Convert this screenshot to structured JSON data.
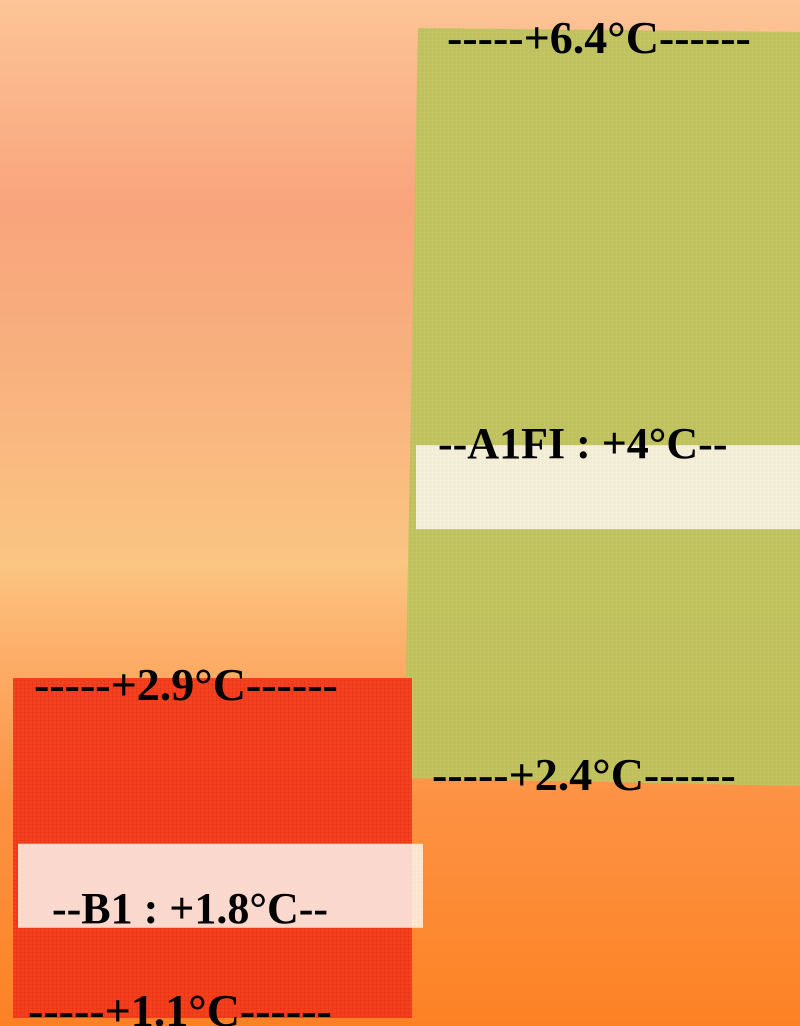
{
  "chart_data": {
    "type": "bar",
    "unit": "°C",
    "series": [
      {
        "name": "B1",
        "low": 1.1,
        "high": 2.9,
        "best": 1.8,
        "color": "#f33a1a",
        "low_label": "-----+1.1°C------",
        "high_label": "-----+2.9°C------",
        "best_label": "--B1 : +1.8°C--"
      },
      {
        "name": "A1FI",
        "low": 2.4,
        "high": 6.4,
        "best": 4.0,
        "color": "#b9c05a",
        "low_label": "-----+2.4°C------",
        "high_label": "-----+6.4°C------",
        "best_label": "--A1FI : +4°C--"
      }
    ]
  }
}
